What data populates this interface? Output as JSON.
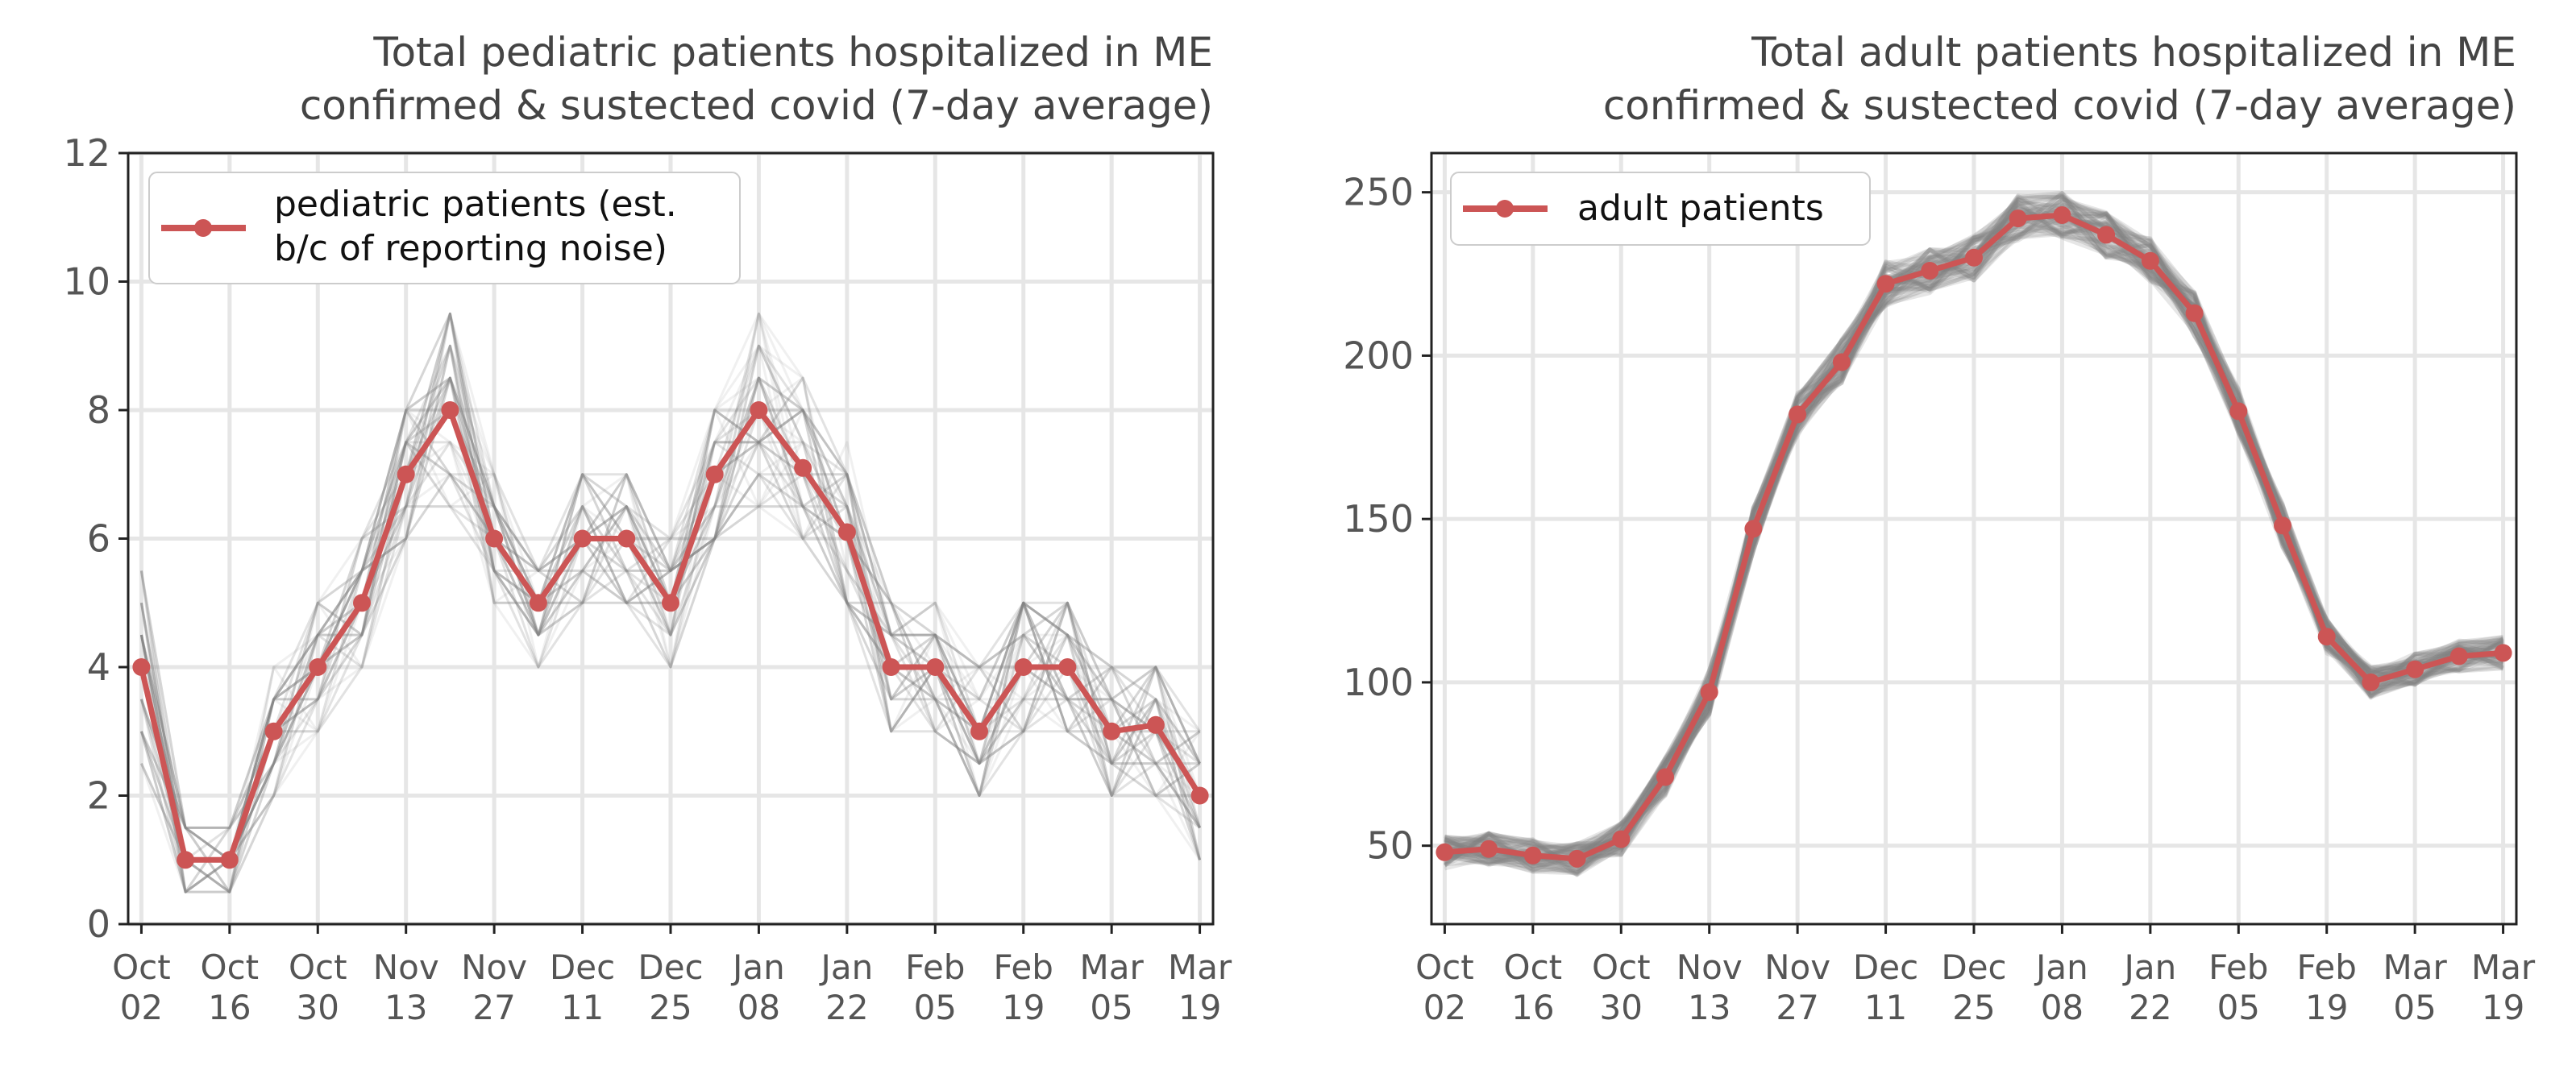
{
  "colors": {
    "main": "#cc5555",
    "band": "#808080",
    "grid": "#e6e6e6",
    "axis": "#222222"
  },
  "chart_data": [
    {
      "type": "line",
      "title": [
        "Total pediatric patients hospitalized in ME",
        "confirmed & sustected covid (7-day average)"
      ],
      "xlabel": "",
      "ylabel": "",
      "x_ticks": [
        {
          "index": 0,
          "label": [
            "Oct",
            "02"
          ]
        },
        {
          "index": 2,
          "label": [
            "Oct",
            "16"
          ]
        },
        {
          "index": 4,
          "label": [
            "Oct",
            "30"
          ]
        },
        {
          "index": 6,
          "label": [
            "Nov",
            "13"
          ]
        },
        {
          "index": 8,
          "label": [
            "Nov",
            "27"
          ]
        },
        {
          "index": 10,
          "label": [
            "Dec",
            "11"
          ]
        },
        {
          "index": 12,
          "label": [
            "Dec",
            "25"
          ]
        },
        {
          "index": 14,
          "label": [
            "Jan",
            "08"
          ]
        },
        {
          "index": 16,
          "label": [
            "Jan",
            "22"
          ]
        },
        {
          "index": 18,
          "label": [
            "Feb",
            "05"
          ]
        },
        {
          "index": 20,
          "label": [
            "Feb",
            "19"
          ]
        },
        {
          "index": 22,
          "label": [
            "Mar",
            "05"
          ]
        },
        {
          "index": 24,
          "label": [
            "Mar",
            "19"
          ]
        }
      ],
      "xlim": [
        -0.3,
        24.3
      ],
      "ylim": [
        0,
        12
      ],
      "y_ticks": [
        0,
        2,
        4,
        6,
        8,
        10,
        12
      ],
      "grid": true,
      "legend_position": "top-left",
      "series": [
        {
          "name": [
            "pediatric patients (est.",
            "b/c of reporting noise)"
          ],
          "values": [
            4.0,
            1.0,
            1.0,
            3.0,
            4.0,
            5.0,
            7.0,
            8.0,
            6.0,
            5.0,
            6.0,
            6.0,
            5.0,
            7.0,
            8.0,
            7.1,
            6.1,
            4.0,
            4.0,
            3.0,
            4.0,
            4.0,
            3.0,
            3.1,
            2.0
          ]
        }
      ],
      "uncertainty_spread": [
        1.6,
        0.5,
        0.5,
        0.9,
        1.0,
        1.1,
        1.3,
        1.7,
        1.0,
        0.9,
        1.1,
        1.1,
        1.0,
        1.2,
        1.7,
        1.3,
        1.2,
        1.2,
        1.1,
        1.0,
        1.2,
        1.1,
        1.1,
        1.1,
        1.0
      ]
    },
    {
      "type": "line",
      "title": [
        "Total adult patients hospitalized in ME",
        "confirmed & sustected covid (7-day average)"
      ],
      "xlabel": "",
      "ylabel": "",
      "x_ticks": [
        {
          "index": 0,
          "label": [
            "Oct",
            "02"
          ]
        },
        {
          "index": 2,
          "label": [
            "Oct",
            "16"
          ]
        },
        {
          "index": 4,
          "label": [
            "Oct",
            "30"
          ]
        },
        {
          "index": 6,
          "label": [
            "Nov",
            "13"
          ]
        },
        {
          "index": 8,
          "label": [
            "Nov",
            "27"
          ]
        },
        {
          "index": 10,
          "label": [
            "Dec",
            "11"
          ]
        },
        {
          "index": 12,
          "label": [
            "Dec",
            "25"
          ]
        },
        {
          "index": 14,
          "label": [
            "Jan",
            "08"
          ]
        },
        {
          "index": 16,
          "label": [
            "Jan",
            "22"
          ]
        },
        {
          "index": 18,
          "label": [
            "Feb",
            "05"
          ]
        },
        {
          "index": 20,
          "label": [
            "Feb",
            "19"
          ]
        },
        {
          "index": 22,
          "label": [
            "Mar",
            "05"
          ]
        },
        {
          "index": 24,
          "label": [
            "Mar",
            "19"
          ]
        }
      ],
      "xlim": [
        -0.3,
        24.3
      ],
      "ylim": [
        26,
        262
      ],
      "y_ticks": [
        50,
        100,
        150,
        200,
        250
      ],
      "grid": true,
      "legend_position": "top-left",
      "series": [
        {
          "name": [
            "adult patients"
          ],
          "values": [
            48,
            49,
            47,
            46,
            52,
            71,
            97,
            147,
            182,
            198,
            222,
            226,
            230,
            242,
            243,
            237,
            229,
            213,
            183,
            148,
            114,
            100,
            104,
            108,
            109
          ]
        }
      ],
      "uncertainty_spread": [
        5,
        5,
        5,
        5,
        5,
        6,
        7,
        7,
        7,
        7,
        7,
        7,
        7,
        7,
        7,
        7,
        7,
        7,
        7,
        7,
        6,
        5,
        5,
        5,
        5
      ]
    }
  ]
}
